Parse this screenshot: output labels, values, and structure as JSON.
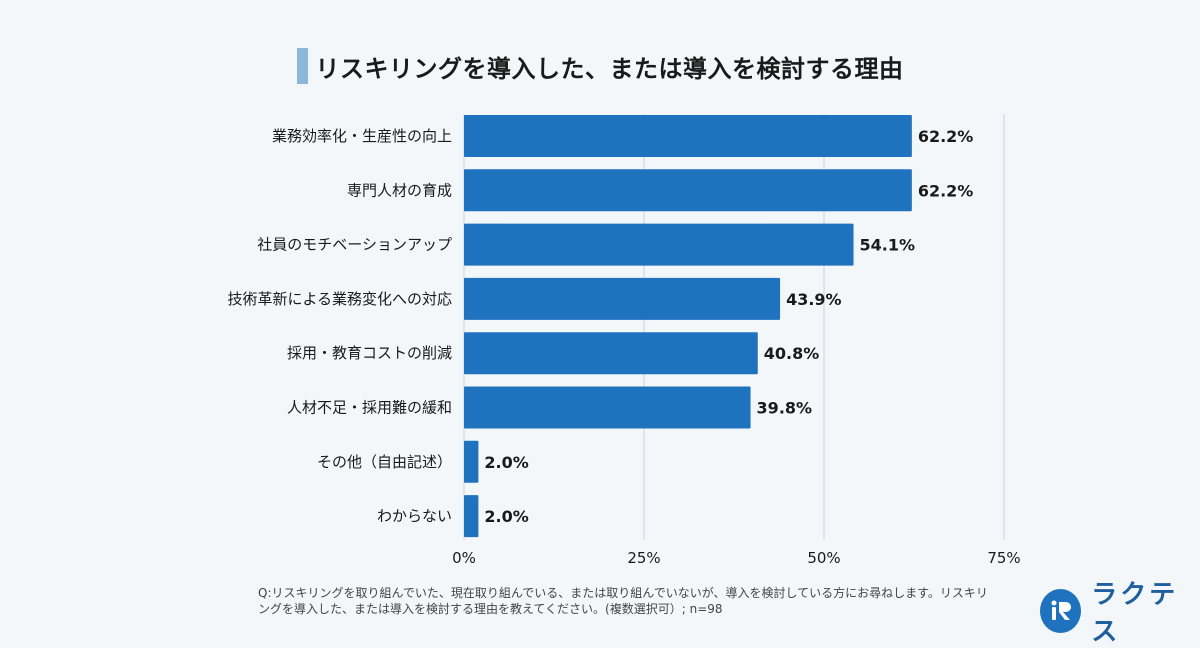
{
  "title": "リスキリングを導入した、または導入を検討する理由",
  "chart_data": {
    "type": "bar",
    "orientation": "horizontal",
    "title": "リスキリングを導入した、または導入を検討する理由",
    "categories": [
      "業務効率化・生産性の向上",
      "専門人材の育成",
      "社員のモチベーションアップ",
      "技術革新による業務変化への対応",
      "採用・教育コストの削減",
      "人材不足・採用難の緩和",
      "その他（自由記述）",
      "わからない"
    ],
    "values": [
      62.2,
      62.2,
      54.1,
      43.9,
      40.8,
      39.8,
      2.0,
      2.0
    ],
    "value_labels": [
      "62.2%",
      "62.2%",
      "54.1%",
      "43.9%",
      "40.8%",
      "39.8%",
      "2.0%",
      "2.0%"
    ],
    "xlim": [
      0,
      75
    ],
    "x_ticks": [
      0,
      25,
      50,
      75
    ],
    "x_tick_labels": [
      "0%",
      "25%",
      "50%",
      "75%"
    ],
    "bar_color": "#1f72be",
    "grid": true
  },
  "footnote": "Q:リスキリングを取り組んでいた、現在取り組んでいる、または取り組んでいないが、導入を検討している方にお尋ねします。リスキリングを導入した、または導入を検討する理由を教えてください。(複数選択可）; n=98",
  "logo": {
    "text": "ラクテス",
    "mark_text": "iR"
  }
}
